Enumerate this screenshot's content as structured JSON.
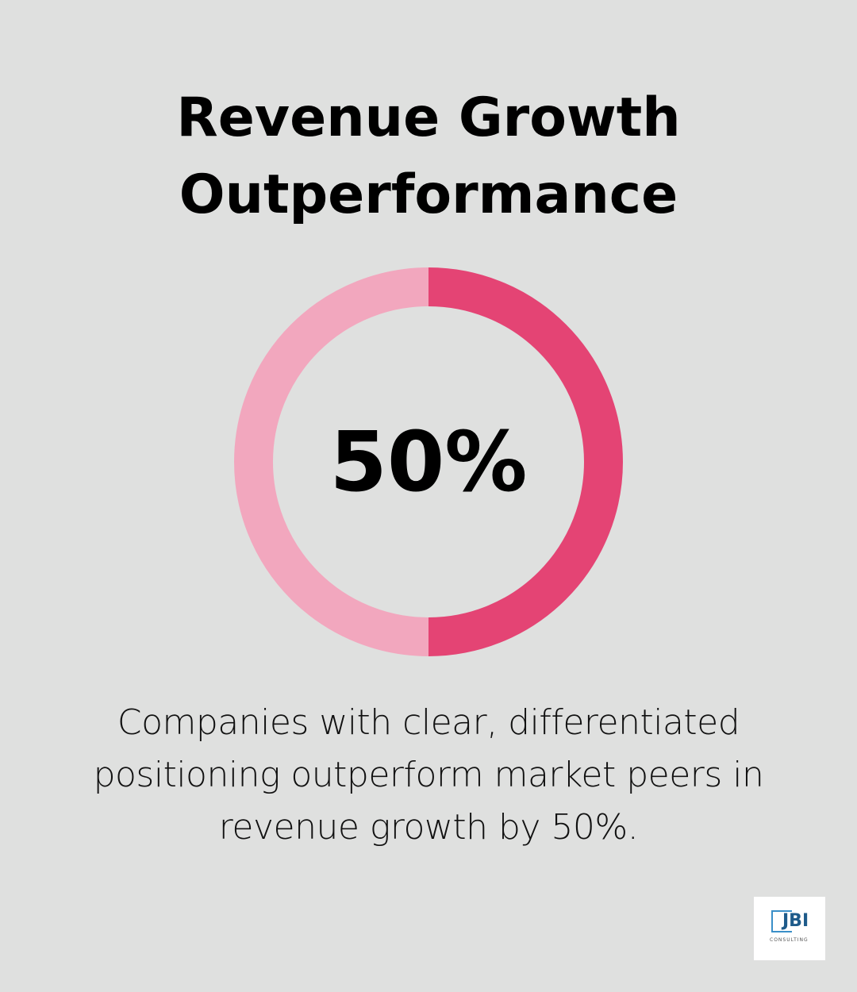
{
  "title_line1": "Revenue Growth",
  "title_line2": "Outperformance",
  "chart_data": {
    "type": "pie",
    "style": "donut",
    "values": [
      50,
      50
    ],
    "colors": [
      "#e44474",
      "#f2a7be"
    ],
    "center_label": "50%"
  },
  "caption": "Companies with clear, differentiated positioning outperform market peers in revenue growth by 50%.",
  "logo": {
    "name": "JBI",
    "sub": "CONSULTING"
  }
}
